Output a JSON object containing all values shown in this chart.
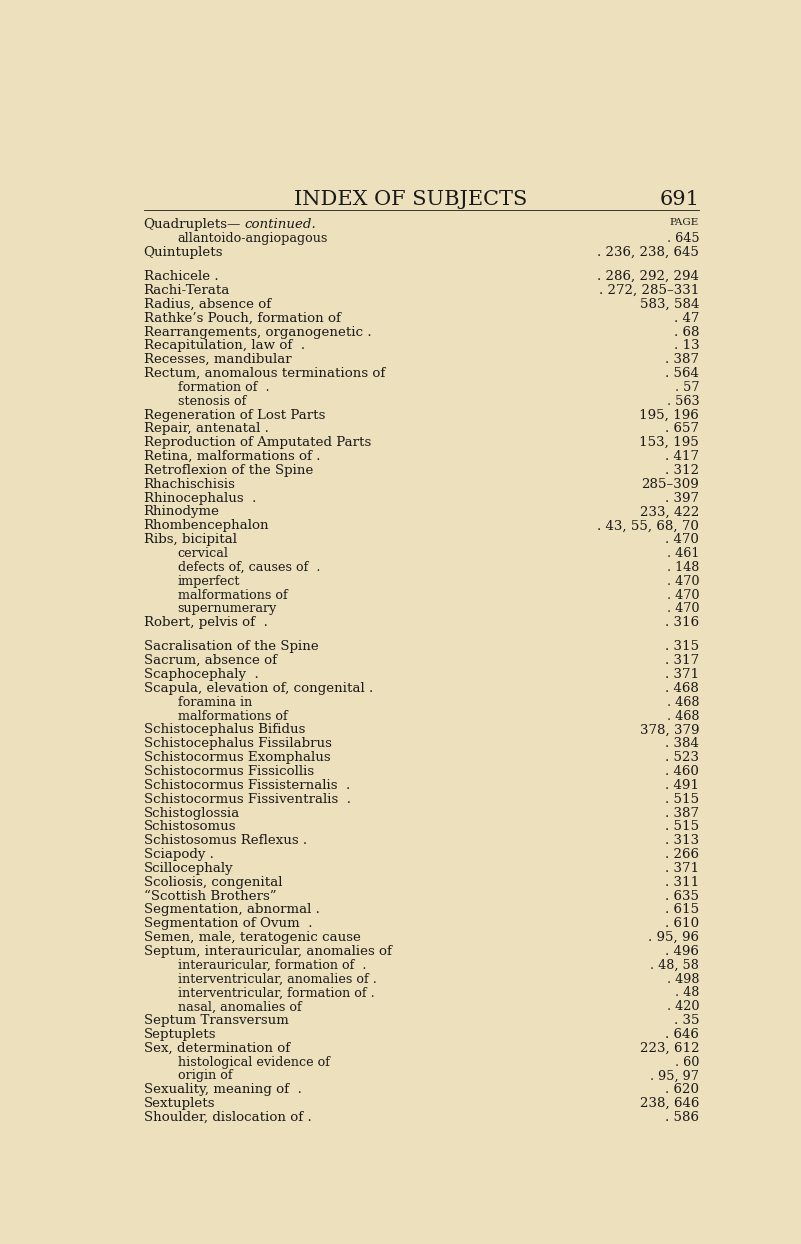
{
  "bg_color": "#ede0bc",
  "text_color": "#1a1a1a",
  "title": "INDEX OF SUBJECTS",
  "page_number": "691",
  "entries": [
    {
      "indent": 0,
      "label": "Quadruplets—",
      "italic_part": "continued.",
      "page_right": "PAGE",
      "style": "mixed"
    },
    {
      "indent": 1,
      "label": "allantoido-angiopagous",
      "page": ". 645",
      "style": "normal"
    },
    {
      "indent": 0,
      "label": "Quintuplets",
      "page": ". 236, 238, 645",
      "style": "smallcaps"
    },
    {
      "indent": 0,
      "label": "",
      "page": "",
      "style": "blank"
    },
    {
      "indent": 0,
      "label": "Rachicele .",
      "page": ". 286, 292, 294",
      "style": "smallcaps"
    },
    {
      "indent": 0,
      "label": "Rachi-Terata",
      "page": ". 272, 285–331",
      "style": "smallcaps"
    },
    {
      "indent": 0,
      "label": "Radius, absence of",
      "page": "583, 584",
      "style": "smallcaps"
    },
    {
      "indent": 0,
      "label": "Rathke’s Pouch, formation of",
      "page": ". 47",
      "style": "smallcaps"
    },
    {
      "indent": 0,
      "label": "Rearrangements, organogenetic .",
      "page": ". 68",
      "style": "smallcaps"
    },
    {
      "indent": 0,
      "label": "Recapitulation, law of  .",
      "page": ". 13",
      "style": "smallcaps"
    },
    {
      "indent": 0,
      "label": "Recesses, mandibular",
      "page": ". 387",
      "style": "smallcaps"
    },
    {
      "indent": 0,
      "label": "Rectum, anomalous terminations of",
      "page": ". 564",
      "style": "smallcaps"
    },
    {
      "indent": 1,
      "label": "formation of  .",
      "page": ". 57",
      "style": "normal"
    },
    {
      "indent": 1,
      "label": "stenosis of",
      "page": ". 563",
      "style": "normal"
    },
    {
      "indent": 0,
      "label": "Regeneration of Lost Parts",
      "page": "195, 196",
      "style": "smallcaps"
    },
    {
      "indent": 0,
      "label": "Repair, antenatal .",
      "page": ". 657",
      "style": "smallcaps"
    },
    {
      "indent": 0,
      "label": "Reproduction of Amputated Parts",
      "page": "153, 195",
      "style": "smallcaps"
    },
    {
      "indent": 0,
      "label": "Retina, malformations of .",
      "page": ". 417",
      "style": "smallcaps"
    },
    {
      "indent": 0,
      "label": "Retroflexion of the Spine",
      "page": ". 312",
      "style": "smallcaps"
    },
    {
      "indent": 0,
      "label": "Rhachischisis",
      "page": "285–309",
      "style": "smallcaps"
    },
    {
      "indent": 0,
      "label": "Rhinocephalus  .",
      "page": ". 397",
      "style": "smallcaps"
    },
    {
      "indent": 0,
      "label": "Rhinodyme",
      "page": "233, 422",
      "style": "smallcaps"
    },
    {
      "indent": 0,
      "label": "Rhombencephalon",
      "page": ". 43, 55, 68, 70",
      "style": "smallcaps"
    },
    {
      "indent": 0,
      "label": "Ribs, bicipital",
      "page": ". 470",
      "style": "smallcaps"
    },
    {
      "indent": 1,
      "label": "cervical",
      "page": ". 461",
      "style": "normal"
    },
    {
      "indent": 1,
      "label": "defects of, causes of  .",
      "page": ". 148",
      "style": "normal"
    },
    {
      "indent": 1,
      "label": "imperfect",
      "page": ". 470",
      "style": "normal"
    },
    {
      "indent": 1,
      "label": "malformations of",
      "page": ". 470",
      "style": "normal"
    },
    {
      "indent": 1,
      "label": "supernumerary",
      "page": ". 470",
      "style": "normal"
    },
    {
      "indent": 0,
      "label": "Robert, pelvis of  .",
      "page": ". 316",
      "style": "smallcaps"
    },
    {
      "indent": 0,
      "label": "",
      "page": "",
      "style": "blank"
    },
    {
      "indent": 0,
      "label": "Sacralisation of the Spine",
      "page": ". 315",
      "style": "smallcaps"
    },
    {
      "indent": 0,
      "label": "Sacrum, absence of",
      "page": ". 317",
      "style": "smallcaps"
    },
    {
      "indent": 0,
      "label": "Scaphocephaly  .",
      "page": ". 371",
      "style": "smallcaps"
    },
    {
      "indent": 0,
      "label": "Scapula, elevation of, congenital .",
      "page": ". 468",
      "style": "smallcaps"
    },
    {
      "indent": 1,
      "label": "foramina in",
      "page": ". 468",
      "style": "normal"
    },
    {
      "indent": 1,
      "label": "malformations of",
      "page": ". 468",
      "style": "normal"
    },
    {
      "indent": 0,
      "label": "Schistocephalus Bifidus",
      "page": "378, 379",
      "style": "smallcaps"
    },
    {
      "indent": 0,
      "label": "Schistocephalus Fissilabrus",
      "page": ". 384",
      "style": "smallcaps"
    },
    {
      "indent": 0,
      "label": "Schistocormus Exomphalus",
      "page": ". 523",
      "style": "smallcaps"
    },
    {
      "indent": 0,
      "label": "Schistocormus Fissicollis",
      "page": ". 460",
      "style": "smallcaps"
    },
    {
      "indent": 0,
      "label": "Schistocormus Fissisternalis  .",
      "page": ". 491",
      "style": "smallcaps"
    },
    {
      "indent": 0,
      "label": "Schistocormus Fissiventralis  .",
      "page": ". 515",
      "style": "smallcaps"
    },
    {
      "indent": 0,
      "label": "Schistoglossia",
      "page": ". 387",
      "style": "smallcaps"
    },
    {
      "indent": 0,
      "label": "Schistosomus",
      "page": ". 515",
      "style": "smallcaps"
    },
    {
      "indent": 0,
      "label": "Schistosomus Reflexus .",
      "page": ". 313",
      "style": "smallcaps"
    },
    {
      "indent": 0,
      "label": "Sciapody .",
      "page": ". 266",
      "style": "smallcaps"
    },
    {
      "indent": 0,
      "label": "Scillocephaly",
      "page": ". 371",
      "style": "smallcaps"
    },
    {
      "indent": 0,
      "label": "Scoliosis, congenital",
      "page": ". 311",
      "style": "smallcaps"
    },
    {
      "indent": 0,
      "label": "“Scottish Brothers”",
      "page": ". 635",
      "style": "smallcaps"
    },
    {
      "indent": 0,
      "label": "Segmentation, abnormal .",
      "page": ". 615",
      "style": "smallcaps"
    },
    {
      "indent": 0,
      "label": "Segmentation of Ovum  .",
      "page": ". 610",
      "style": "smallcaps"
    },
    {
      "indent": 0,
      "label": "Semen, male, teratogenic cause",
      "page": ". 95, 96",
      "style": "smallcaps"
    },
    {
      "indent": 0,
      "label": "Septum, interauricular, anomalies of",
      "page": ". 496",
      "style": "smallcaps"
    },
    {
      "indent": 1,
      "label": "interauricular, formation of  .",
      "page": ". 48, 58",
      "style": "normal"
    },
    {
      "indent": 1,
      "label": "interventricular, anomalies of .",
      "page": ". 498",
      "style": "normal"
    },
    {
      "indent": 1,
      "label": "interventricular, formation of .",
      "page": ". 48",
      "style": "normal"
    },
    {
      "indent": 1,
      "label": "nasal, anomalies of",
      "page": ". 420",
      "style": "normal"
    },
    {
      "indent": 0,
      "label": "Septum Transversum",
      "page": ". 35",
      "style": "smallcaps"
    },
    {
      "indent": 0,
      "label": "Septuplets",
      "page": ". 646",
      "style": "smallcaps"
    },
    {
      "indent": 0,
      "label": "Sex, determination of",
      "page": "223, 612",
      "style": "smallcaps"
    },
    {
      "indent": 1,
      "label": "histological evidence of",
      "page": ". 60",
      "style": "normal"
    },
    {
      "indent": 1,
      "label": "origin of",
      "page": ". 95, 97",
      "style": "normal"
    },
    {
      "indent": 0,
      "label": "Sexuality, meaning of  .",
      "page": ". 620",
      "style": "smallcaps"
    },
    {
      "indent": 0,
      "label": "Sextuplets",
      "page": "238, 646",
      "style": "smallcaps"
    },
    {
      "indent": 0,
      "label": "Shoulder, dislocation of .",
      "page": ". 586",
      "style": "smallcaps"
    }
  ]
}
